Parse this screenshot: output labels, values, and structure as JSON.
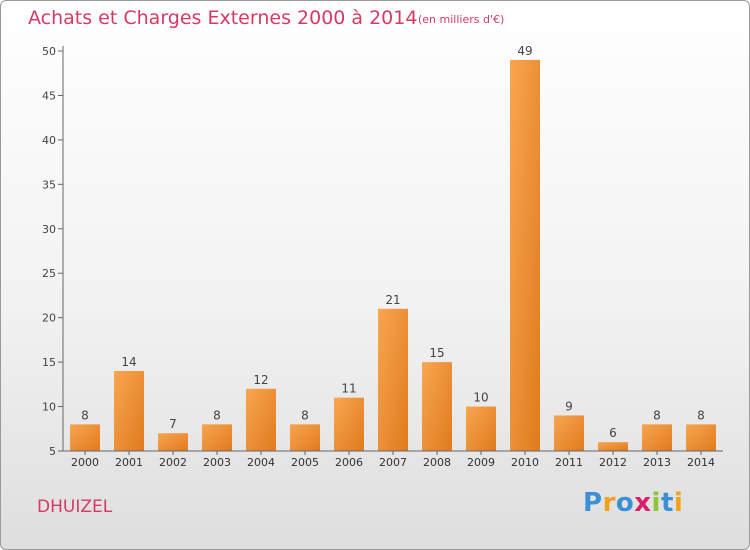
{
  "header": {
    "title": "Achats et Charges Externes 2000 à 2014",
    "unit": "(en milliers d'€)"
  },
  "footer": {
    "place": "DHUIZEL",
    "brand": {
      "text": "Proxiti",
      "letter_colors": [
        "#3a8fd6",
        "#f0a21c",
        "#3a8fd6",
        "#d6206b",
        "#8cc43c",
        "#3a8fd6",
        "#f0a21c"
      ]
    }
  },
  "colors": {
    "title": "#d63a63",
    "bar_light": "#f8a650",
    "bar_dark": "#e07a1e",
    "axis": "#666666",
    "grid": "#cfcfcf"
  },
  "chart_data": {
    "type": "bar",
    "categories": [
      "2000",
      "2001",
      "2002",
      "2003",
      "2004",
      "2005",
      "2006",
      "2007",
      "2008",
      "2009",
      "2010",
      "2011",
      "2012",
      "2013",
      "2014"
    ],
    "values": [
      8,
      14,
      7,
      8,
      12,
      8,
      11,
      21,
      15,
      10,
      49,
      9,
      6,
      8,
      8
    ],
    "data_labels": [
      "8",
      "14",
      "7",
      "8",
      "12",
      "8",
      "11",
      "21",
      "15",
      "10",
      "49",
      "9",
      "6",
      "8",
      "8"
    ],
    "y_ticks": [
      5,
      10,
      15,
      20,
      25,
      30,
      35,
      40,
      45,
      50
    ],
    "ylim": [
      5,
      50
    ],
    "grid": false,
    "legend": "none"
  }
}
